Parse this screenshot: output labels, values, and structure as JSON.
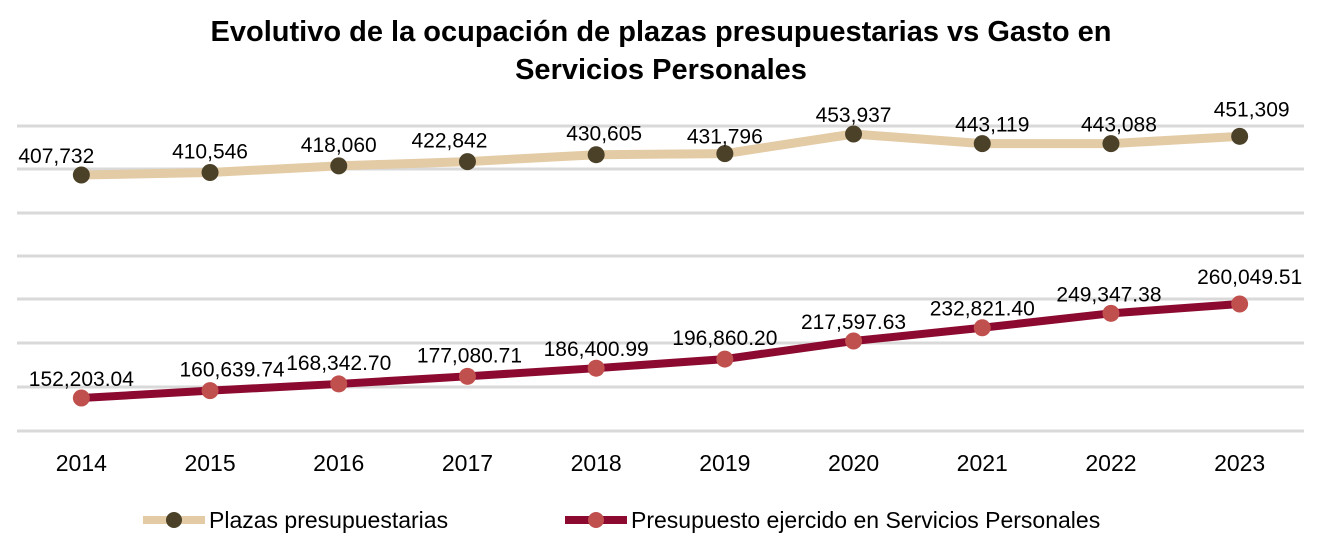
{
  "chart_data": {
    "type": "line",
    "title": "Evolutivo de la ocupación de plazas presupuestarias vs Gasto en Servicios Personales",
    "title_lines": [
      "Evolutivo de la ocupación de plazas presupuestarias vs Gasto en",
      "Servicios Personales"
    ],
    "xlabel": "",
    "ylabel": "",
    "categories": [
      "2014",
      "2015",
      "2016",
      "2017",
      "2018",
      "2019",
      "2020",
      "2021",
      "2022",
      "2023"
    ],
    "grid": true,
    "legend_position": "bottom",
    "series": [
      {
        "name": "Plazas presupuestarias",
        "values": [
          407732,
          410546,
          418060,
          422842,
          430605,
          431796,
          453937,
          443119,
          443088,
          451309
        ],
        "labels": [
          "407,732",
          "410,546",
          "418,060",
          "422,842",
          "430,605",
          "431,796",
          "453,937",
          "443,119",
          "443,088",
          "451,309"
        ],
        "line_color": "#E3CBA5",
        "marker_color": "#4A4128"
      },
      {
        "name": "Presupuesto ejercido en Servicios Personales",
        "values": [
          152203.04,
          160639.74,
          168342.7,
          177080.71,
          186400.99,
          196860.2,
          217597.63,
          232821.4,
          249347.38,
          260049.51
        ],
        "labels": [
          "152,203.04",
          "160,639.74",
          "168,342.70",
          "177,080.71",
          "186,400.99",
          "196,860.20",
          "217,597.63",
          "232,821.40",
          "249,347.38",
          "260,049.51"
        ],
        "line_color": "#8C0A30",
        "marker_color": "#C0504D"
      }
    ],
    "gridline_color": "#D9D9D9"
  }
}
